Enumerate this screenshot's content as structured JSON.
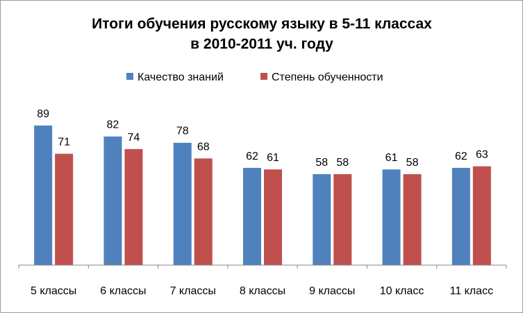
{
  "chart_data": {
    "type": "bar",
    "title": "Итоги обучения русскому языку в 5-11 классах",
    "subtitle": "в 2010-2011 уч. году",
    "categories": [
      "5 классы",
      "6 классы",
      "7 классы",
      "8 классы",
      "9 классы",
      "10 класс",
      "11 класс"
    ],
    "series": [
      {
        "name": "Качество знаний",
        "color": "#4f81bd",
        "values": [
          89,
          82,
          78,
          62,
          58,
          61,
          62
        ]
      },
      {
        "name": "Степень обученности",
        "color": "#c0504d",
        "values": [
          71,
          74,
          68,
          61,
          58,
          58,
          63
        ]
      }
    ],
    "ylim": [
      0,
      100
    ],
    "grid": false,
    "legend_position": "top",
    "data_labels": true
  }
}
